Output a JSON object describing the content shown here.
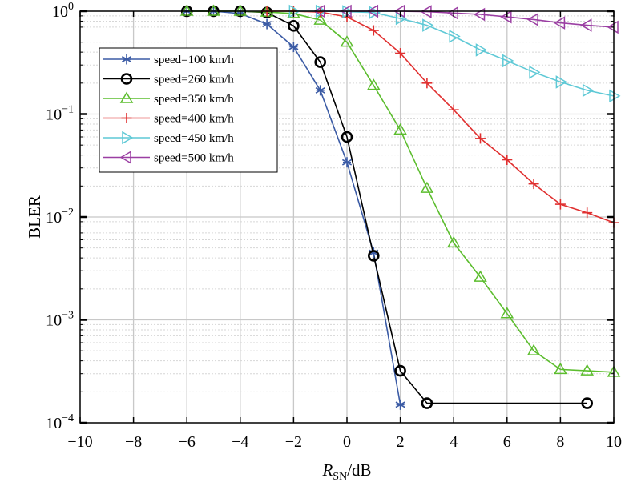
{
  "chart_data": {
    "type": "line",
    "xlabel": "R",
    "xlabel_sub": "SN",
    "xlabel_unit": "/dB",
    "ylabel": "BLER",
    "xlim": [
      -10,
      10
    ],
    "ylim": [
      0.0001,
      1
    ],
    "yscale": "log",
    "grid": true,
    "legend_position": "top-left",
    "x_ticks": [
      "−10",
      "−8",
      "−6",
      "−4",
      "−2",
      "0",
      "2",
      "4",
      "6",
      "8",
      "10"
    ],
    "y_ticks": [
      {
        "base": "10",
        "exp": "0"
      },
      {
        "base": "10",
        "exp": "−1"
      },
      {
        "base": "10",
        "exp": "−2"
      },
      {
        "base": "10",
        "exp": "−3"
      },
      {
        "base": "10",
        "exp": "−4"
      }
    ],
    "series": [
      {
        "name": "speed=100 km/h",
        "color": "#3b5ba5",
        "marker": "asterisk",
        "x": [
          -6,
          -5,
          -4,
          -3,
          -2,
          -1,
          0,
          1,
          2
        ],
        "y": [
          1.0,
          1.0,
          0.95,
          0.75,
          0.45,
          0.17,
          0.034,
          0.0045,
          0.00015
        ]
      },
      {
        "name": "speed=260 km/h",
        "color": "#000000",
        "marker": "circle",
        "x": [
          -6,
          -5,
          -4,
          -3,
          -2,
          -1,
          0,
          1,
          2,
          3,
          9
        ],
        "y": [
          1.0,
          1.0,
          1.0,
          0.97,
          0.72,
          0.32,
          0.06,
          0.0042,
          0.00032,
          0.000155,
          0.000155
        ]
      },
      {
        "name": "speed=350 km/h",
        "color": "#5cbd2e",
        "marker": "triangle-up",
        "x": [
          -6,
          -5,
          -4,
          -3,
          -2,
          -1,
          0,
          1,
          2,
          3,
          4,
          5,
          6,
          7,
          8,
          9,
          10
        ],
        "y": [
          1.0,
          1.0,
          1.0,
          0.98,
          0.95,
          0.82,
          0.5,
          0.19,
          0.07,
          0.019,
          0.0056,
          0.0026,
          0.00115,
          0.0005,
          0.00033,
          0.00032,
          0.00031
        ]
      },
      {
        "name": "speed=400 km/h",
        "color": "#e03030",
        "marker": "plus",
        "x": [
          -3,
          -2,
          -1,
          0,
          1,
          2,
          3,
          4,
          5,
          6,
          7,
          8,
          9,
          10
        ],
        "y": [
          1.0,
          1.0,
          0.98,
          0.88,
          0.65,
          0.39,
          0.2,
          0.11,
          0.058,
          0.036,
          0.021,
          0.0133,
          0.011,
          0.0088
        ]
      },
      {
        "name": "speed=450 km/h",
        "color": "#5fc9d6",
        "marker": "triangle-right",
        "x": [
          -2,
          -1,
          0,
          1,
          2,
          3,
          4,
          5,
          6,
          7,
          8,
          9,
          10
        ],
        "y": [
          1.0,
          1.0,
          0.99,
          0.97,
          0.85,
          0.73,
          0.57,
          0.42,
          0.33,
          0.255,
          0.205,
          0.17,
          0.15
        ]
      },
      {
        "name": "speed=500 km/h",
        "color": "#9b3fa3",
        "marker": "triangle-left",
        "x": [
          -1,
          0,
          1,
          2,
          3,
          4,
          5,
          6,
          7,
          8,
          9,
          10
        ],
        "y": [
          1.0,
          1.0,
          1.0,
          1.0,
          0.99,
          0.96,
          0.93,
          0.88,
          0.83,
          0.77,
          0.73,
          0.7
        ]
      }
    ]
  }
}
